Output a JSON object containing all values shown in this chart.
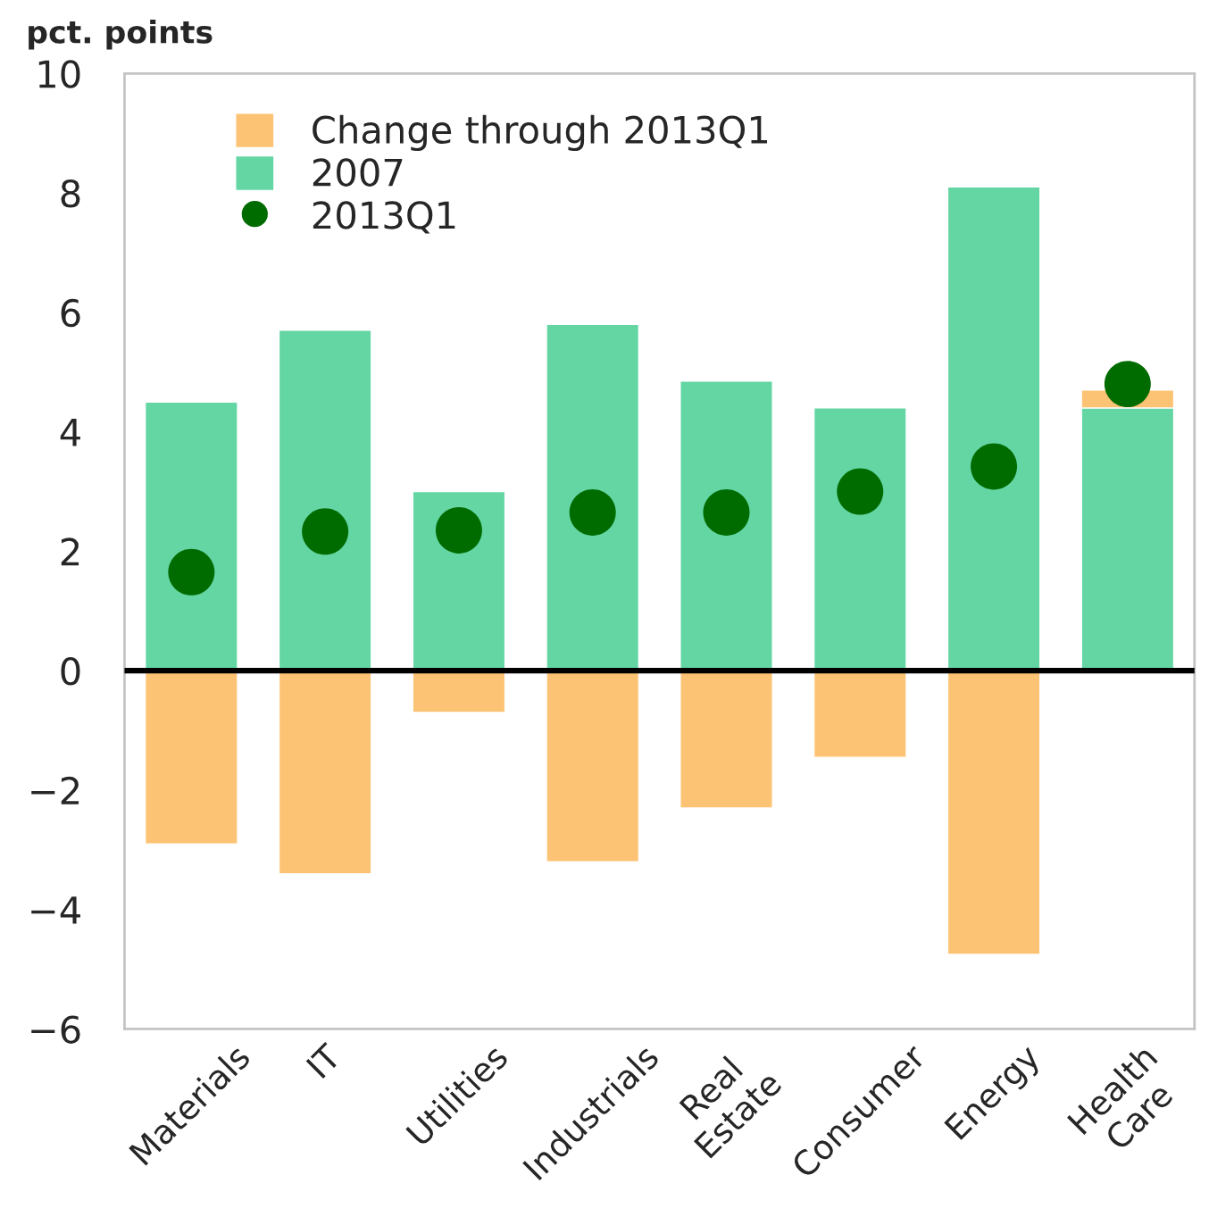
{
  "chart_data": {
    "type": "bar",
    "stacked": true,
    "ylabel": "pct. points",
    "categories": [
      "Materials",
      "IT",
      "Utilities",
      "Industrials",
      "Real\nEstate",
      "Consumer",
      "Energy",
      "Health\nCare"
    ],
    "series": [
      {
        "name": "2007",
        "color": "#64d6a4",
        "values": [
          4.5,
          5.7,
          3.0,
          5.8,
          4.85,
          4.4,
          8.1,
          4.4
        ]
      },
      {
        "name": "Change through 2013Q1",
        "color": "#fdc374",
        "values": [
          -2.9,
          -3.4,
          -0.7,
          -3.2,
          -2.3,
          -1.45,
          -4.75,
          0.3
        ]
      },
      {
        "name": "2013Q1",
        "type": "scatter",
        "color": "#006c00",
        "values": [
          1.65,
          2.33,
          2.35,
          2.65,
          2.65,
          3.0,
          3.42,
          4.8
        ]
      }
    ],
    "ylim": [
      -6,
      10
    ],
    "yticks": [
      -6,
      -4,
      -2,
      0,
      2,
      4,
      6,
      8,
      10
    ],
    "ref_lines": [
      {
        "axis": "y",
        "value": 0,
        "color": "#000000"
      }
    ],
    "legend": "top left",
    "marker": "circle"
  }
}
